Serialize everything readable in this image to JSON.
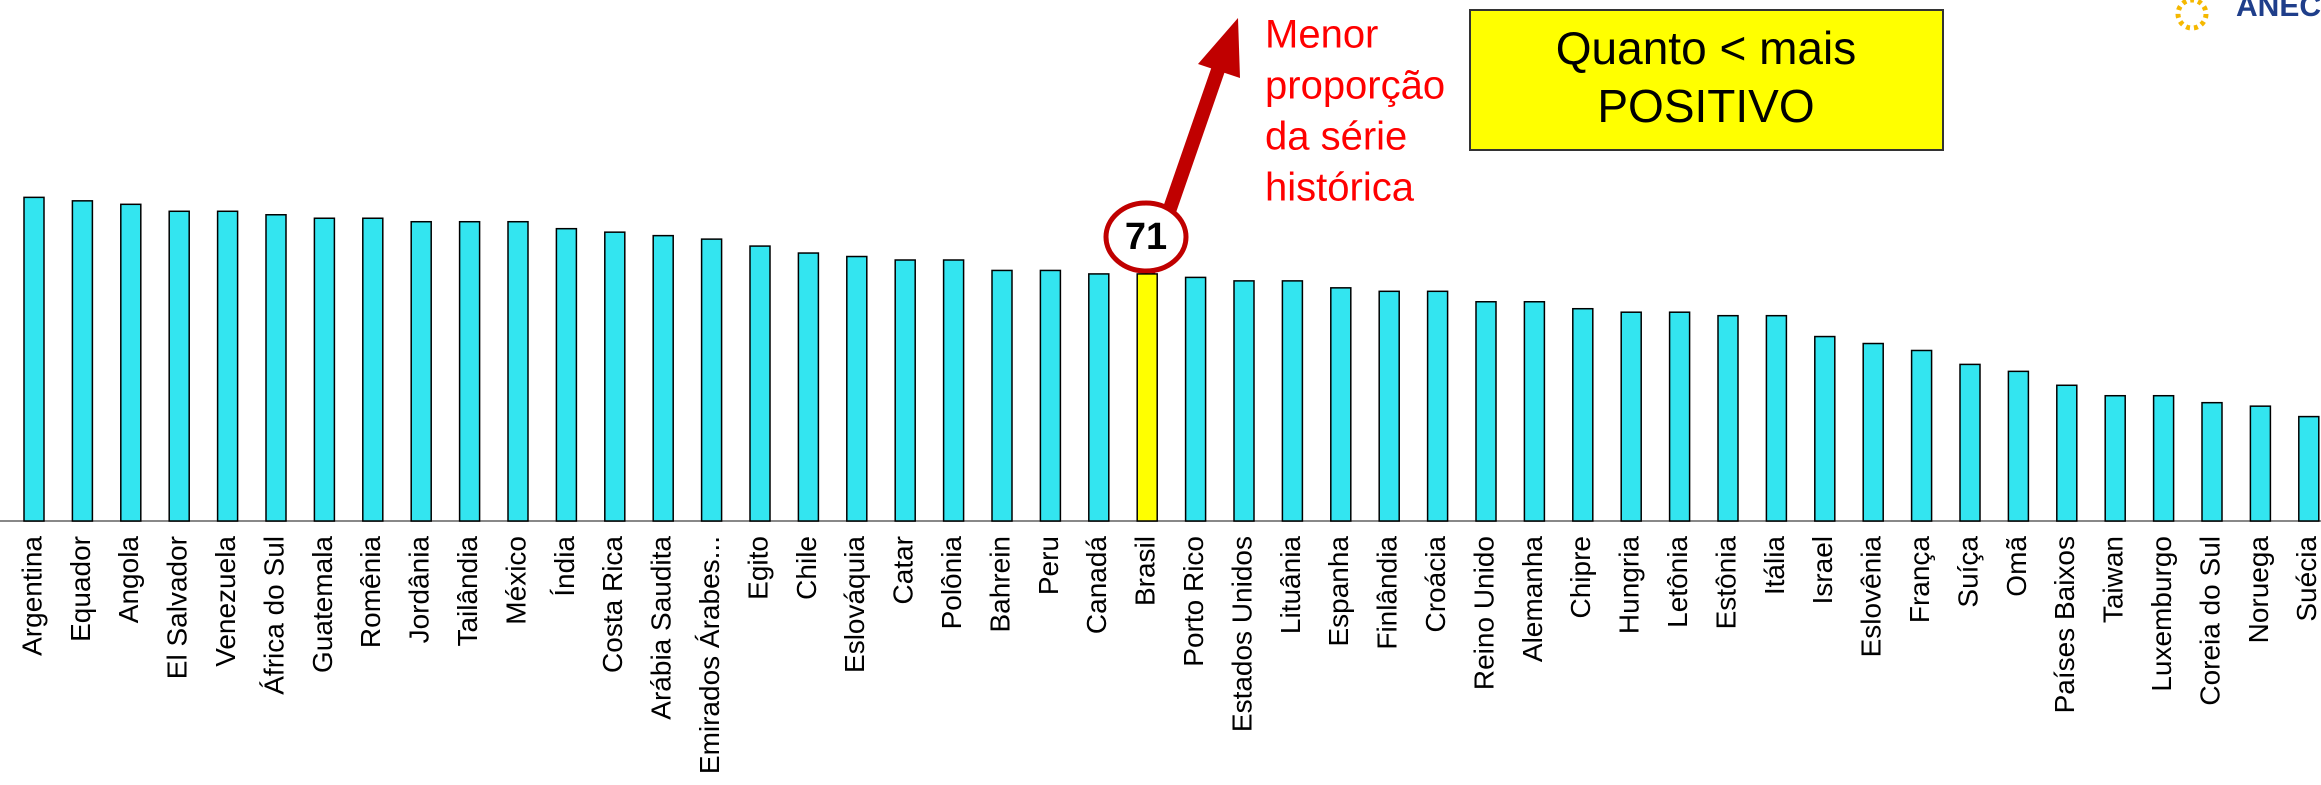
{
  "chart_data": {
    "type": "bar",
    "categories": [
      "Argentina",
      "Equador",
      "Angola",
      "El Salvador",
      "Venezuela",
      "África do Sul",
      "Guatemala",
      "Romênia",
      "Jordânia",
      "Tailândia",
      "México",
      "Índia",
      "Costa Rica",
      "Arábia Saudita",
      "Emirados Árabes...",
      "Egito",
      "Chile",
      "Eslováquia",
      "Catar",
      "Polônia",
      "Bahrein",
      "Peru",
      "Canadá",
      "Brasil",
      "Porto Rico",
      "Estados Unidos",
      "Lituânia",
      "Espanha",
      "Finlândia",
      "Croácia",
      "Reino Unido",
      "Alemanha",
      "Chipre",
      "Hungria",
      "Letônia",
      "Estônia",
      "Itália",
      "Israel",
      "Eslovênia",
      "França",
      "Suíça",
      "Omã",
      "Países Baixos",
      "Taiwan",
      "Luxemburgo",
      "Coreia do Sul",
      "Noruega",
      "Suécia"
    ],
    "values": [
      93,
      92,
      91,
      89,
      89,
      88,
      87,
      87,
      86,
      86,
      86,
      84,
      83,
      82,
      81,
      79,
      77,
      76,
      75,
      75,
      72,
      72,
      71,
      71,
      70,
      69,
      69,
      67,
      66,
      66,
      63,
      63,
      61,
      60,
      60,
      59,
      59,
      53,
      51,
      49,
      45,
      43,
      39,
      36,
      36,
      34,
      33,
      30
    ],
    "color": "#33e5f0",
    "highlight": {
      "category": "Brasil",
      "color": "#ffff00"
    },
    "annotations": [
      {
        "lines": [
          "Menor",
          "proporção",
          "da série",
          "histórica"
        ],
        "color": "#ff0000"
      },
      {
        "lines": [
          "Quanto < mais",
          "POSITIVO"
        ],
        "background": "#ffff00"
      }
    ]
  },
  "logo": "ANEC"
}
